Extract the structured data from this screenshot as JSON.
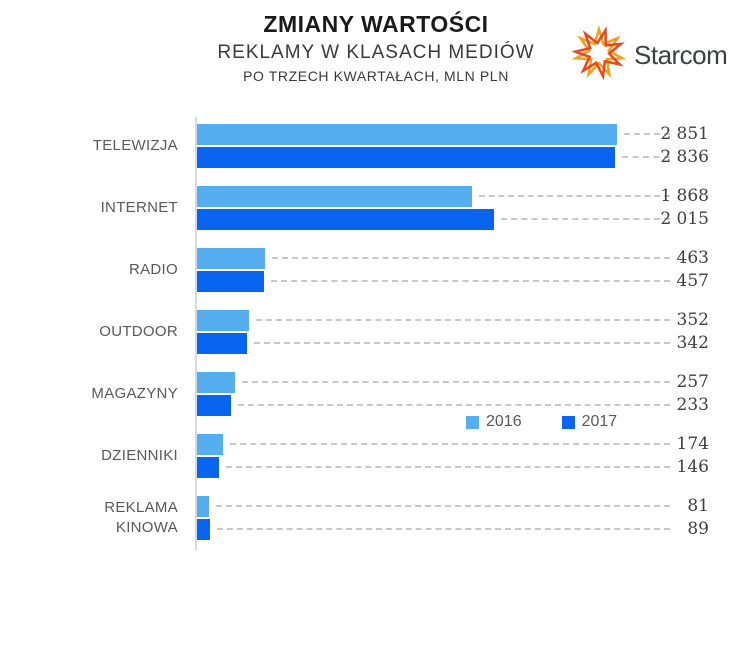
{
  "title": {
    "line1": "ZMIANY WARTOŚCI",
    "line2": "REKLAMY W KLASACH MEDIÓW",
    "line3": "PO TRZECH KWARTAŁACH, MLN PLN"
  },
  "logo": {
    "text": "Starcom"
  },
  "legend": [
    {
      "label": "2016",
      "color": "#55aef0"
    },
    {
      "label": "2017",
      "color": "#0964f0"
    }
  ],
  "colors": {
    "series_2016": "#55aef0",
    "series_2017": "#0964f0",
    "leader_line": "#c8c8c8",
    "axis_line": "#d9d9d9",
    "category_text": "#595959",
    "value_text": "#404040",
    "logo_orange": "#f1a01e",
    "logo_red": "#e5491d"
  },
  "chart_data": {
    "type": "bar",
    "orientation": "horizontal",
    "title": "ZMIANY WARTOŚCI REKLAMY W KLASACH MEDIÓW PO TRZECH KWARTAŁACH, MLN PLN",
    "categories": [
      "TELEWIZJA",
      "INTERNET",
      "RADIO",
      "OUTDOOR",
      "MAGAZYNY",
      "DZIENNIKI",
      "REKLAMA KINOWA"
    ],
    "series": [
      {
        "name": "2016",
        "color": "#55aef0",
        "values": [
          2851,
          1868,
          463,
          352,
          257,
          174,
          81
        ],
        "labels": [
          "2 851",
          "1 868",
          "463",
          "352",
          "257",
          "174",
          "81"
        ]
      },
      {
        "name": "2017",
        "color": "#0964f0",
        "values": [
          2836,
          2015,
          457,
          342,
          233,
          146,
          89
        ],
        "labels": [
          "2 836",
          "2 015",
          "457",
          "342",
          "233",
          "146",
          "89"
        ]
      }
    ],
    "xlim": [
      0,
      2851
    ],
    "grid": false,
    "value_labels": "right-aligned with dashed leader lines",
    "legend_position": "inside-right-between-magazyny-and-dzienniki"
  }
}
